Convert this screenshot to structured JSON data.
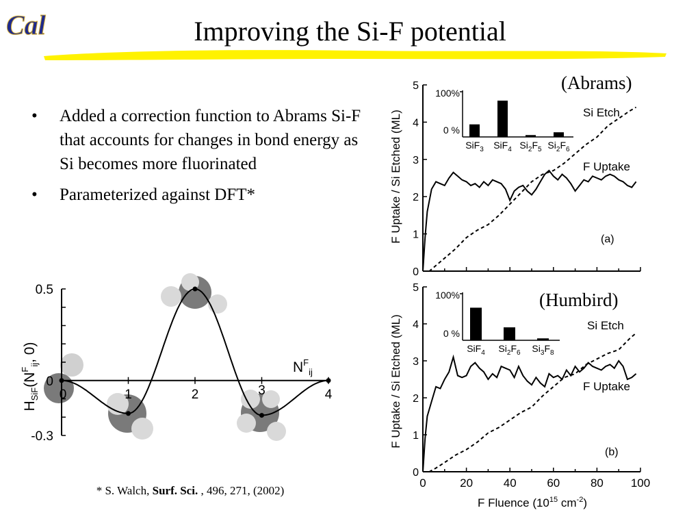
{
  "slide": {
    "title": "Improving the Si-F potential",
    "logo_text": "Cal",
    "bullets": [
      "Added a correction function to Abrams Si-F that accounts for changes in bond energy as Si becomes more fluorinated",
      "Parameterized against DFT*"
    ],
    "citation": {
      "prefix": "* S. Walch, ",
      "journal": "Surf. Sci.",
      "suffix": " , 496, 271, (2002)"
    }
  },
  "colors": {
    "accent_yellow": "#FFF200",
    "logo_blue": "#1F2A8C",
    "molecule_gray": "#7A7A7A"
  },
  "chart_data": [
    {
      "type": "line",
      "id": "correction-function",
      "ylabel_main": "H",
      "ylabel_sub": "SiF",
      "ylabel_paren": "(N",
      "ylabel_sup": "F",
      "ylabel_sub2": "ij",
      "ylabel_tail": ", 0)",
      "xlabel_main": "N",
      "xlabel_sup": "F",
      "xlabel_sub": "ij",
      "x_ticks": [
        "0",
        "1",
        "2",
        "3",
        "4"
      ],
      "y_ticks": [
        "0.5",
        "0",
        "-0.3"
      ],
      "xlim": [
        0,
        4
      ],
      "ylim": [
        -0.3,
        0.5
      ],
      "points": [
        {
          "x": 0,
          "y": 0
        },
        {
          "x": 1,
          "y": -0.18
        },
        {
          "x": 2,
          "y": 0.5
        },
        {
          "x": 3,
          "y": -0.19
        },
        {
          "x": 4,
          "y": 0
        }
      ]
    },
    {
      "type": "line",
      "id": "abrams-plot",
      "model_label": "(Abrams)",
      "panel_label": "(a)",
      "ylabel": "F Uptake / Si Etched (ML)",
      "ylim": [
        0,
        5
      ],
      "xlim": [
        0,
        100
      ],
      "y_ticks": [
        "0",
        "1",
        "2",
        "3",
        "4",
        "5"
      ],
      "series": [
        {
          "name": "Si Etch",
          "style": "dashed",
          "x": [
            0,
            3,
            6,
            10,
            15,
            20,
            25,
            30,
            35,
            40,
            45,
            50,
            55,
            60,
            65,
            70,
            75,
            80,
            85,
            90,
            95,
            98
          ],
          "y": [
            0,
            0,
            0.15,
            0.35,
            0.6,
            0.9,
            1.1,
            1.25,
            1.5,
            1.8,
            2.1,
            2.4,
            2.6,
            2.7,
            2.9,
            3.15,
            3.4,
            3.6,
            3.9,
            4.1,
            4.3,
            4.4
          ]
        },
        {
          "name": "F Uptake",
          "style": "solid",
          "x": [
            0,
            1,
            2,
            4,
            6,
            8,
            10,
            12,
            14,
            16,
            18,
            20,
            22,
            24,
            26,
            28,
            30,
            32,
            34,
            36,
            38,
            40,
            42,
            44,
            46,
            48,
            50,
            52,
            54,
            56,
            58,
            60,
            62,
            64,
            66,
            68,
            70,
            72,
            74,
            76,
            78,
            80,
            82,
            84,
            86,
            88,
            90,
            92,
            94,
            96,
            98
          ],
          "y": [
            0,
            0.9,
            1.6,
            2.2,
            2.4,
            2.35,
            2.3,
            2.5,
            2.65,
            2.55,
            2.45,
            2.4,
            2.3,
            2.35,
            2.25,
            2.4,
            2.3,
            2.45,
            2.4,
            2.35,
            2.2,
            1.9,
            2.15,
            2.25,
            2.3,
            2.15,
            2.05,
            2.2,
            2.4,
            2.6,
            2.7,
            2.55,
            2.45,
            2.6,
            2.5,
            2.35,
            2.15,
            2.3,
            2.45,
            2.4,
            2.55,
            2.5,
            2.45,
            2.55,
            2.6,
            2.55,
            2.45,
            2.4,
            2.3,
            2.25,
            2.4
          ]
        }
      ],
      "inset": {
        "type": "bar",
        "y_ticks": [
          "100%",
          "0 %"
        ],
        "categories": [
          {
            "base": "SiF",
            "sub": "3",
            "base2": "",
            "sub2": ""
          },
          {
            "base": "SiF",
            "sub": "4",
            "base2": "",
            "sub2": ""
          },
          {
            "base": "Si",
            "sub": "2",
            "base2": "F",
            "sub2": "5"
          },
          {
            "base": "Si",
            "sub": "2",
            "base2": "F",
            "sub2": "6"
          }
        ],
        "values": [
          27,
          78,
          4,
          10
        ]
      }
    },
    {
      "type": "line",
      "id": "humbird-plot",
      "model_label": "(Humbird)",
      "panel_label": "(b)",
      "ylabel": "F Uptake / Si Etched (ML)",
      "xlabel_main": "F",
      "xlabel_rest": " Fluence (10",
      "xlabel_sup": "15",
      "xlabel_unit": " cm",
      "xlabel_sup2": "-2",
      "xlabel_close": ")",
      "ylim": [
        0,
        5
      ],
      "xlim": [
        0,
        100
      ],
      "x_ticks": [
        "0",
        "20",
        "40",
        "60",
        "80",
        "100"
      ],
      "y_ticks": [
        "0",
        "1",
        "2",
        "3",
        "4",
        "5"
      ],
      "series": [
        {
          "name": "Si Etch",
          "style": "dashed",
          "x": [
            0,
            3,
            6,
            10,
            15,
            20,
            25,
            30,
            35,
            40,
            45,
            50,
            55,
            60,
            65,
            70,
            75,
            80,
            85,
            90,
            95,
            98
          ],
          "y": [
            0,
            0,
            0.1,
            0.25,
            0.45,
            0.6,
            0.8,
            1.05,
            1.2,
            1.4,
            1.6,
            1.75,
            2.05,
            2.3,
            2.55,
            2.65,
            2.9,
            3.05,
            3.2,
            3.3,
            3.6,
            3.75
          ]
        },
        {
          "name": "F Uptake",
          "style": "solid",
          "x": [
            0,
            1,
            2,
            4,
            6,
            8,
            10,
            12,
            14,
            16,
            18,
            20,
            22,
            24,
            26,
            28,
            30,
            32,
            34,
            36,
            38,
            40,
            42,
            44,
            46,
            48,
            50,
            52,
            54,
            56,
            58,
            60,
            62,
            64,
            66,
            68,
            70,
            72,
            74,
            76,
            78,
            80,
            82,
            84,
            86,
            88,
            90,
            92,
            94,
            96,
            98
          ],
          "y": [
            0,
            0.9,
            1.5,
            1.9,
            2.3,
            2.25,
            2.5,
            2.7,
            3.1,
            2.6,
            2.55,
            2.6,
            2.85,
            2.95,
            2.8,
            2.7,
            2.5,
            2.65,
            2.55,
            2.85,
            2.8,
            2.75,
            2.55,
            2.85,
            2.6,
            2.45,
            2.35,
            2.55,
            2.4,
            2.3,
            2.65,
            2.55,
            2.6,
            2.5,
            2.75,
            2.6,
            2.85,
            2.7,
            2.8,
            2.95,
            2.85,
            2.8,
            2.75,
            2.85,
            2.9,
            2.8,
            3.0,
            2.85,
            2.5,
            2.55,
            2.65
          ]
        }
      ],
      "inset": {
        "type": "bar",
        "y_ticks": [
          "100%",
          "0 %"
        ],
        "categories": [
          {
            "base": "SiF",
            "sub": "4",
            "base2": "",
            "sub2": ""
          },
          {
            "base": "Si",
            "sub": "2",
            "base2": "F",
            "sub2": "6"
          },
          {
            "base": "Si",
            "sub": "3",
            "base2": "F",
            "sub2": "8"
          }
        ],
        "values": [
          68,
          27,
          4
        ]
      }
    }
  ]
}
